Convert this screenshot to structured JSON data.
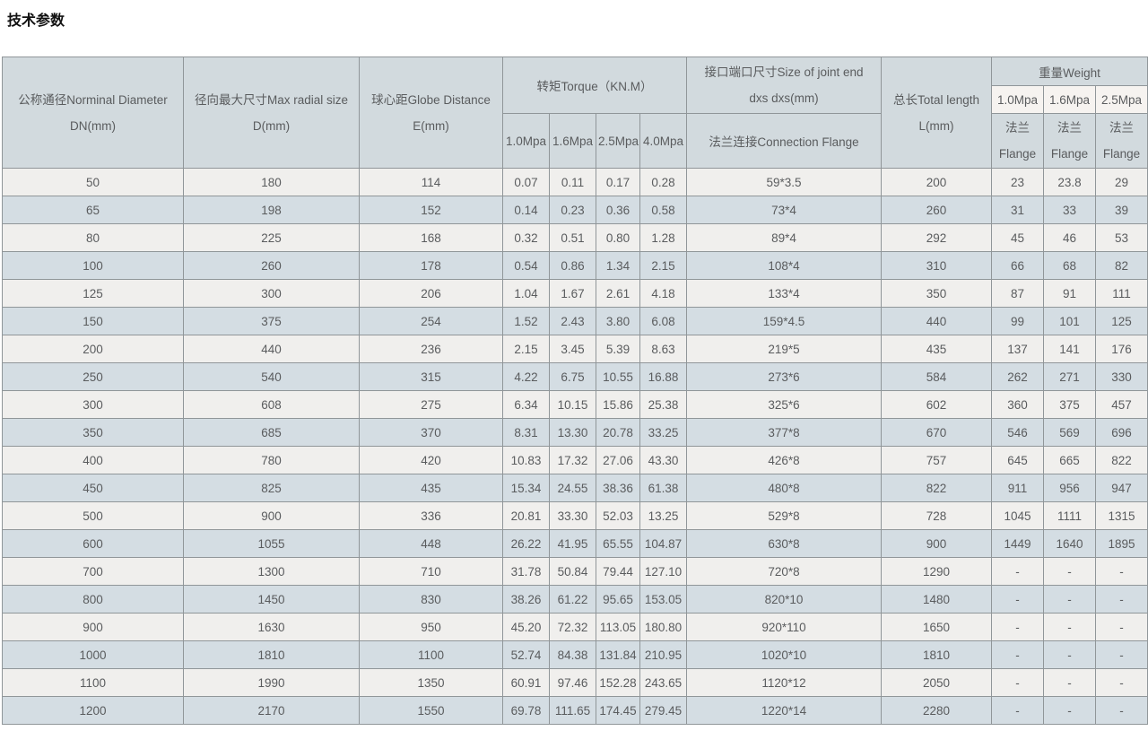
{
  "page": {
    "title": "技术参数"
  },
  "table": {
    "header": {
      "dn_line1": "公称通径Norminal Diameter",
      "dn_line2": "DN(mm)",
      "d_line1": "径向最大尺寸Max radial size",
      "d_line2": "D(mm)",
      "e_line1": "球心距Globe Distance",
      "e_line2": "E(mm)",
      "torque_title": "转矩Torque（KN.M）",
      "torque_subs": [
        "1.0Mpa",
        "1.6Mpa",
        "2.5Mpa",
        "4.0Mpa"
      ],
      "joint_line1": "接口端口尺寸Size of joint end",
      "joint_line2": "dxs dxs(mm)",
      "joint_sub": "法兰连接Connection Flange",
      "length_line1": "总长Total length",
      "length_line2": "L(mm)",
      "weight_title": "重量Weight",
      "weight_subs": [
        "1.0Mpa",
        "1.6Mpa",
        "2.5Mpa"
      ],
      "flange_line1": "法兰",
      "flange_line2": "Flange"
    },
    "rows": [
      [
        "50",
        "180",
        "114",
        "0.07",
        "0.11",
        "0.17",
        "0.28",
        "59*3.5",
        "200",
        "23",
        "23.8",
        "29"
      ],
      [
        "65",
        "198",
        "152",
        "0.14",
        "0.23",
        "0.36",
        "0.58",
        "73*4",
        "260",
        "31",
        "33",
        "39"
      ],
      [
        "80",
        "225",
        "168",
        "0.32",
        "0.51",
        "0.80",
        "1.28",
        "89*4",
        "292",
        "45",
        "46",
        "53"
      ],
      [
        "100",
        "260",
        "178",
        "0.54",
        "0.86",
        "1.34",
        "2.15",
        "108*4",
        "310",
        "66",
        "68",
        "82"
      ],
      [
        "125",
        "300",
        "206",
        "1.04",
        "1.67",
        "2.61",
        "4.18",
        "133*4",
        "350",
        "87",
        "91",
        "111"
      ],
      [
        "150",
        "375",
        "254",
        "1.52",
        "2.43",
        "3.80",
        "6.08",
        "159*4.5",
        "440",
        "99",
        "101",
        "125"
      ],
      [
        "200",
        "440",
        "236",
        "2.15",
        "3.45",
        "5.39",
        "8.63",
        "219*5",
        "435",
        "137",
        "141",
        "176"
      ],
      [
        "250",
        "540",
        "315",
        "4.22",
        "6.75",
        "10.55",
        "16.88",
        "273*6",
        "584",
        "262",
        "271",
        "330"
      ],
      [
        "300",
        "608",
        "275",
        "6.34",
        "10.15",
        "15.86",
        "25.38",
        "325*6",
        "602",
        "360",
        "375",
        "457"
      ],
      [
        "350",
        "685",
        "370",
        "8.31",
        "13.30",
        "20.78",
        "33.25",
        "377*8",
        "670",
        "546",
        "569",
        "696"
      ],
      [
        "400",
        "780",
        "420",
        "10.83",
        "17.32",
        "27.06",
        "43.30",
        "426*8",
        "757",
        "645",
        "665",
        "822"
      ],
      [
        "450",
        "825",
        "435",
        "15.34",
        "24.55",
        "38.36",
        "61.38",
        "480*8",
        "822",
        "911",
        "956",
        "947"
      ],
      [
        "500",
        "900",
        "336",
        "20.81",
        "33.30",
        "52.03",
        "13.25",
        "529*8",
        "728",
        "1045",
        "1111",
        "1315"
      ],
      [
        "600",
        "1055",
        "448",
        "26.22",
        "41.95",
        "65.55",
        "104.87",
        "630*8",
        "900",
        "1449",
        "1640",
        "1895"
      ],
      [
        "700",
        "1300",
        "710",
        "31.78",
        "50.84",
        "79.44",
        "127.10",
        "720*8",
        "1290",
        "-",
        "-",
        "-"
      ],
      [
        "800",
        "1450",
        "830",
        "38.26",
        "61.22",
        "95.65",
        "153.05",
        "820*10",
        "1480",
        "-",
        "-",
        "-"
      ],
      [
        "900",
        "1630",
        "950",
        "45.20",
        "72.32",
        "113.05",
        "180.80",
        "920*110",
        "1650",
        "-",
        "-",
        "-"
      ],
      [
        "1000",
        "1810",
        "1100",
        "52.74",
        "84.38",
        "131.84",
        "210.95",
        "1020*10",
        "1810",
        "-",
        "-",
        "-"
      ],
      [
        "1100",
        "1990",
        "1350",
        "60.91",
        "97.46",
        "152.28",
        "243.65",
        "1120*12",
        "2050",
        "-",
        "-",
        "-"
      ],
      [
        "1200",
        "2170",
        "1550",
        "69.78",
        "111.65",
        "174.45",
        "279.45",
        "1220*14",
        "2280",
        "-",
        "-",
        "-"
      ]
    ]
  }
}
